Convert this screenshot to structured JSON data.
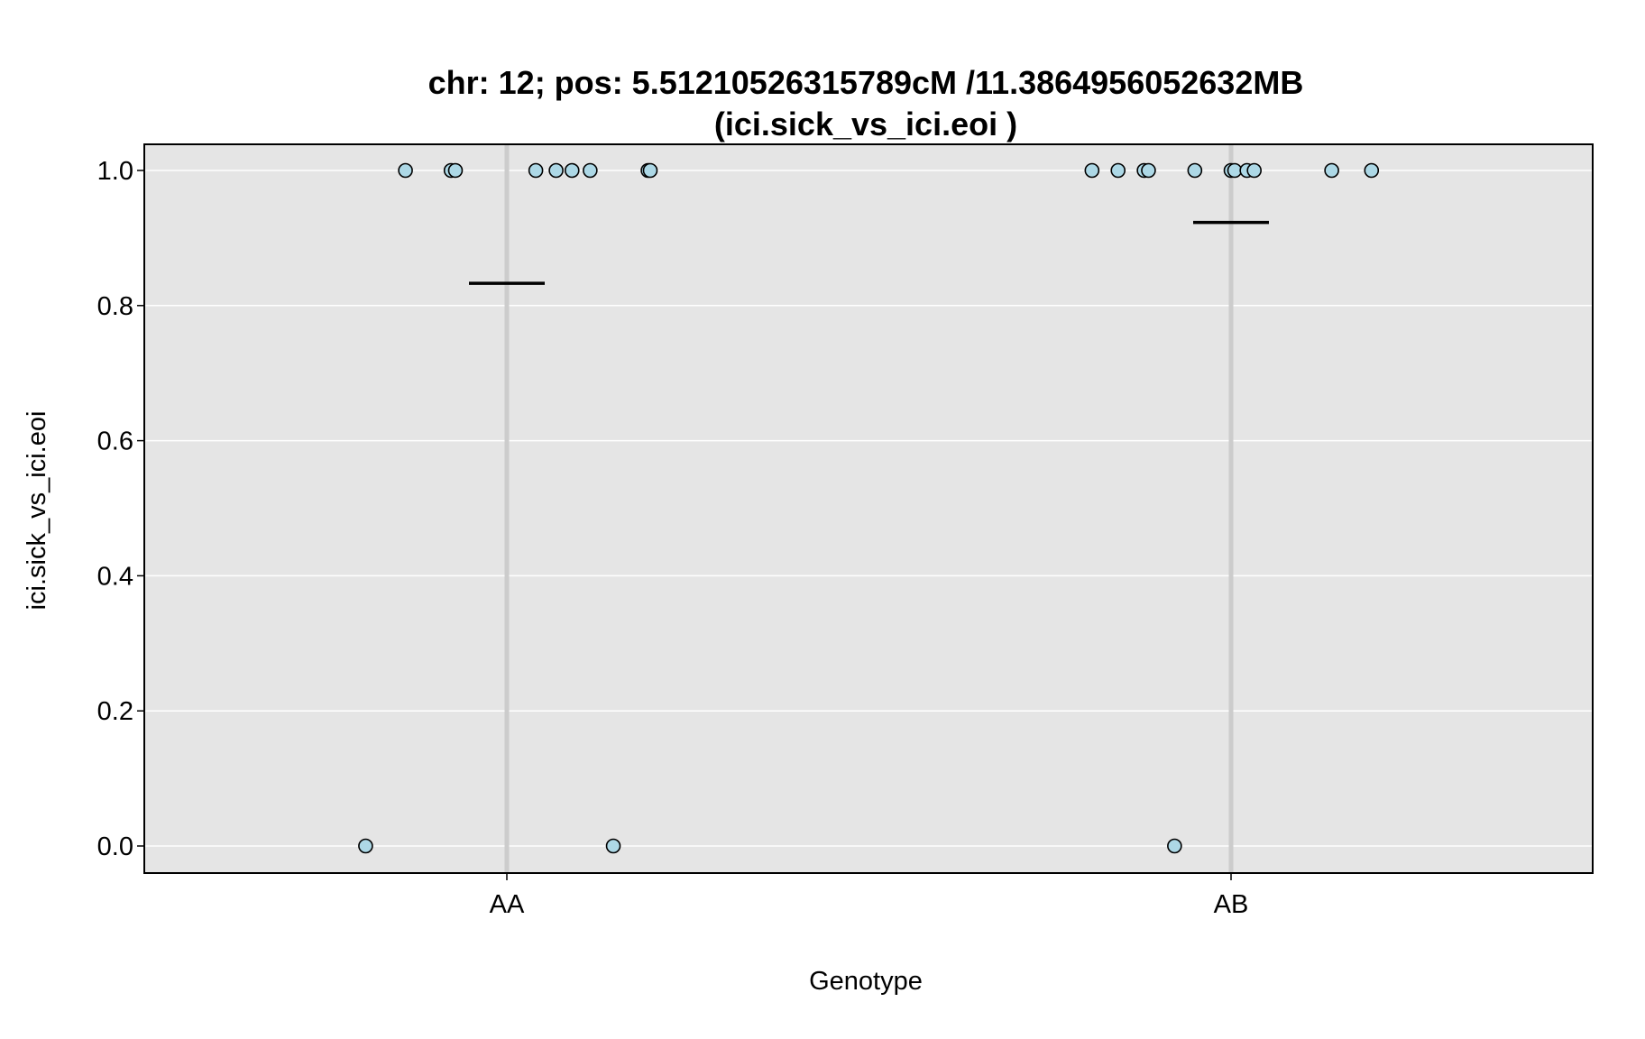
{
  "chart_data": {
    "type": "scatter",
    "title_line1": "chr: 12; pos: 5.51210526315789cM /11.3864956052632MB",
    "title_line2": "(ici.sick_vs_ici.eoi )",
    "xlabel": "Genotype",
    "ylabel": "ici.sick_vs_ici.eoi",
    "categories": [
      "AA",
      "AB"
    ],
    "ylim": [
      -0.04,
      1.04
    ],
    "yticks": [
      0.0,
      0.2,
      0.4,
      0.6,
      0.8,
      1.0
    ],
    "ytick_labels": [
      "0.0",
      "0.2",
      "0.4",
      "0.6",
      "0.8",
      "1.0"
    ],
    "grid": true,
    "colors": {
      "panel": "#e5e5e5",
      "gridline": "#ffffff",
      "category_line": "#cccccc",
      "point_fill": "#add8e6",
      "point_stroke": "#000000",
      "mean_line": "#000000"
    },
    "series": [
      {
        "category": "AA",
        "mean": 0.833,
        "points": [
          {
            "jitter": -0.195,
            "y": 0.0
          },
          {
            "jitter": -0.14,
            "y": 1.0
          },
          {
            "jitter": -0.077,
            "y": 1.0
          },
          {
            "jitter": -0.071,
            "y": 1.0
          },
          {
            "jitter": 0.04,
            "y": 1.0
          },
          {
            "jitter": 0.068,
            "y": 1.0
          },
          {
            "jitter": 0.09,
            "y": 1.0
          },
          {
            "jitter": 0.115,
            "y": 1.0
          },
          {
            "jitter": 0.147,
            "y": 0.0
          },
          {
            "jitter": 0.195,
            "y": 1.0
          },
          {
            "jitter": 0.198,
            "y": 1.0
          }
        ]
      },
      {
        "category": "AB",
        "mean": 0.923,
        "points": [
          {
            "jitter": -0.192,
            "y": 1.0
          },
          {
            "jitter": -0.156,
            "y": 1.0
          },
          {
            "jitter": -0.12,
            "y": 1.0
          },
          {
            "jitter": -0.114,
            "y": 1.0
          },
          {
            "jitter": -0.078,
            "y": 0.0
          },
          {
            "jitter": -0.05,
            "y": 1.0
          },
          {
            "jitter": 0.0,
            "y": 1.0
          },
          {
            "jitter": 0.005,
            "y": 1.0
          },
          {
            "jitter": 0.022,
            "y": 1.0
          },
          {
            "jitter": 0.032,
            "y": 1.0
          },
          {
            "jitter": 0.139,
            "y": 1.0
          },
          {
            "jitter": 0.194,
            "y": 1.0
          }
        ]
      }
    ]
  }
}
